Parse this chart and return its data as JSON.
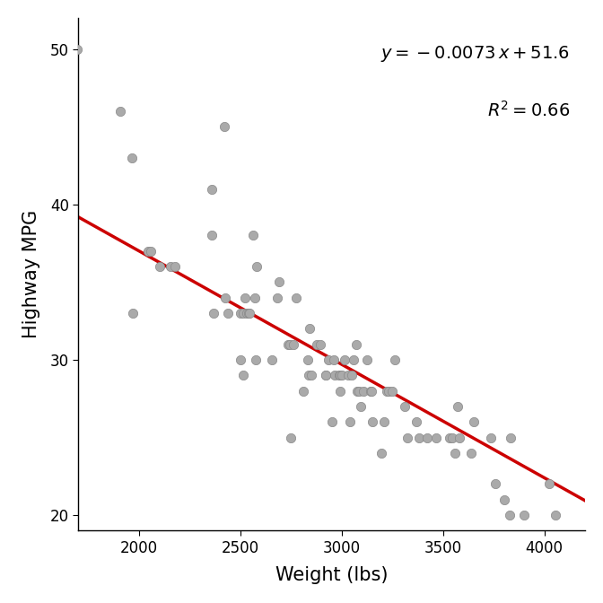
{
  "weight": [
    1695,
    1905,
    1965,
    1970,
    2045,
    2055,
    2100,
    2155,
    2175,
    2360,
    2360,
    2365,
    2420,
    2425,
    2440,
    2500,
    2500,
    2515,
    2515,
    2520,
    2530,
    2540,
    2545,
    2560,
    2570,
    2575,
    2580,
    2655,
    2680,
    2690,
    2735,
    2745,
    2750,
    2760,
    2775,
    2810,
    2830,
    2835,
    2840,
    2850,
    2875,
    2895,
    2920,
    2920,
    2935,
    2950,
    2960,
    2965,
    2985,
    2990,
    2990,
    3000,
    3015,
    3030,
    3040,
    3050,
    3060,
    3070,
    3075,
    3085,
    3095,
    3105,
    3125,
    3140,
    3145,
    3150,
    3195,
    3210,
    3220,
    3230,
    3250,
    3260,
    3310,
    3325,
    3370,
    3380,
    3420,
    3465,
    3530,
    3545,
    3560,
    3570,
    3580,
    3640,
    3650,
    3735,
    3760,
    3800,
    3830,
    3835,
    3900,
    4025,
    4055
  ],
  "mpg": [
    50,
    46,
    43,
    33,
    37,
    37,
    36,
    36,
    36,
    41,
    38,
    33,
    45,
    34,
    33,
    30,
    33,
    33,
    29,
    34,
    33,
    33,
    33,
    38,
    34,
    30,
    36,
    30,
    34,
    35,
    31,
    31,
    25,
    31,
    34,
    28,
    30,
    29,
    32,
    29,
    31,
    31,
    29,
    29,
    30,
    26,
    30,
    29,
    29,
    28,
    29,
    29,
    30,
    29,
    26,
    29,
    30,
    31,
    28,
    28,
    27,
    28,
    30,
    28,
    28,
    26,
    24,
    26,
    28,
    28,
    28,
    30,
    27,
    25,
    26,
    25,
    25,
    25,
    25,
    25,
    24,
    27,
    25,
    24,
    26,
    25,
    22,
    21,
    20,
    25,
    20,
    22,
    20
  ],
  "slope": -0.0073,
  "intercept": 51.6,
  "r_squared": 0.66,
  "line_color": "#CC0000",
  "dot_color": "#AAAAAA",
  "dot_edge_color": "#888888",
  "text_color": "#000000",
  "xlabel": "Weight (lbs)",
  "ylabel": "Highway MPG",
  "xlim": [
    1700,
    4200
  ],
  "ylim": [
    19,
    52
  ],
  "xticks": [
    2000,
    2500,
    3000,
    3500,
    4000
  ],
  "yticks": [
    20,
    30,
    40,
    50
  ],
  "font_size_label": 15,
  "font_size_tick": 12,
  "font_size_annotation": 14,
  "dot_size": 55,
  "line_width": 2.5,
  "background_color": "#ffffff"
}
